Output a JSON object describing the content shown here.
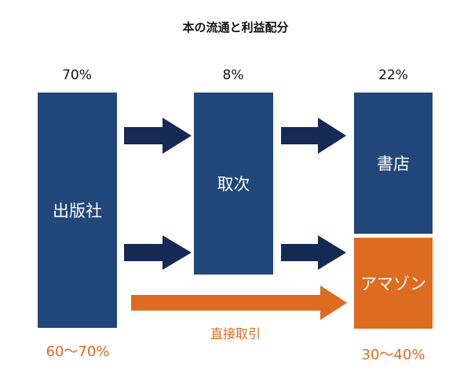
{
  "title": "本の流通と利益配分",
  "percents": {
    "publisher": "70%",
    "distributor": "8%",
    "bookstore": "22%"
  },
  "boxes": {
    "publisher": "出版社",
    "distributor": "取次",
    "bookstore": "書店",
    "amazon": "アマゾン"
  },
  "direct": {
    "label": "直接取引",
    "publisher_share": "60〜70%",
    "amazon_share": "30〜40%"
  },
  "colors": {
    "blue": "#21467a",
    "navy_arrow": "#142a55",
    "orange": "#dd6b20"
  }
}
